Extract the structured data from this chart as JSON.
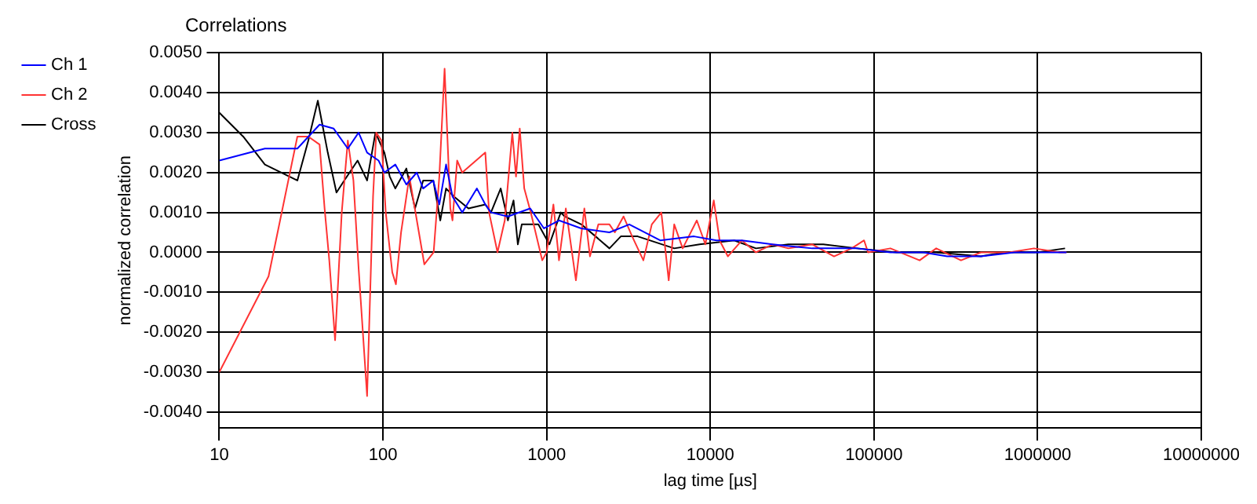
{
  "chart_data": {
    "type": "line",
    "title": "Correlations",
    "xlabel": "lag time [µs]",
    "ylabel": "normalized correlation",
    "log": "x",
    "xlim": [
      10,
      10000000
    ],
    "xticks": [
      10,
      100,
      1000,
      10000,
      100000,
      1000000,
      10000000
    ],
    "ylim": [
      -0.0044,
      0.005
    ],
    "yticks": [
      {
        "value": -0.004,
        "label": "-0.0040"
      },
      {
        "value": -0.003,
        "label": "-0.0030"
      },
      {
        "value": -0.002,
        "label": "-0.0020"
      },
      {
        "value": -0.001,
        "label": "-0.0010"
      },
      {
        "value": 0,
        "label": "0.0000"
      },
      {
        "value": 0.001,
        "label": "0.0010"
      },
      {
        "value": 0.002,
        "label": "0.0020"
      },
      {
        "value": 0.003,
        "label": "0.0030"
      },
      {
        "value": 0.004,
        "label": "0.0040"
      },
      {
        "value": 0.005,
        "label": "0.0050"
      }
    ],
    "grid": true,
    "legend": "top left",
    "marker": "none",
    "line_style": "solid",
    "series": [
      {
        "name": "Ch 1",
        "color": "#0000ff",
        "x": [
          10,
          19,
          30,
          41,
          50,
          61,
          71,
          80,
          94,
          102,
          119,
          139,
          161,
          176,
          203,
          221,
          243,
          266,
          305,
          375,
          422,
          457,
          580,
          794,
          963,
          1190,
          1630,
          2420,
          3200,
          4940,
          7950,
          10900,
          15600,
          24000,
          42000,
          79000,
          126000,
          200000,
          280000,
          450000,
          720000,
          1000000,
          1500000
        ],
        "values": [
          0.0023,
          0.0026,
          0.0026,
          0.0032,
          0.0031,
          0.0026,
          0.003,
          0.0025,
          0.0023,
          0.002,
          0.0022,
          0.0017,
          0.002,
          0.0016,
          0.0018,
          0.0012,
          0.0022,
          0.0014,
          0.001,
          0.0016,
          0.0012,
          0.001,
          0.0009,
          0.0011,
          0.0006,
          0.0008,
          0.0006,
          0.0005,
          0.0007,
          0.0003,
          0.0004,
          0.0003,
          0.0003,
          0.0002,
          0.0001,
          0.0001,
          0,
          0,
          -0.0001,
          -0.0001,
          0,
          0,
          0
        ]
      },
      {
        "name": "Ch 2",
        "color": "#ff3333",
        "x": [
          10,
          20,
          30,
          35,
          41,
          44,
          47,
          51,
          56,
          61,
          66,
          71,
          80,
          87,
          91,
          98,
          104,
          114,
          120,
          129,
          145,
          179,
          204,
          221,
          238,
          258,
          266,
          284,
          305,
          422,
          445,
          501,
          555,
          617,
          650,
          685,
          730,
          800,
          940,
          1000,
          1100,
          1190,
          1310,
          1510,
          1700,
          1840,
          2070,
          2420,
          2610,
          2950,
          3330,
          3900,
          4390,
          5020,
          5570,
          6020,
          6780,
          8270,
          9330,
          10500,
          11400,
          12800,
          15600,
          19000,
          24000,
          30000,
          42000,
          57000,
          73000,
          87000,
          92000,
          126000,
          190000,
          240000,
          340000,
          450000,
          670000,
          950000,
          1370000,
          1500000
        ],
        "values": [
          -0.003,
          -0.0006,
          0.0029,
          0.0029,
          0.0027,
          0.0011,
          -0.0002,
          -0.0022,
          0.001,
          0.0028,
          0.0018,
          -0.0004,
          -0.0036,
          0.0014,
          0.003,
          0.0028,
          0.001,
          -0.0005,
          -0.0008,
          0.0005,
          0.0019,
          -0.0003,
          0,
          0.0019,
          0.0046,
          0.0011,
          0.0008,
          0.0023,
          0.002,
          0.0025,
          0.001,
          0,
          0.0008,
          0.003,
          0.0019,
          0.0031,
          0.0016,
          0.001,
          -0.0002,
          0,
          0.0012,
          -0.0002,
          0.0011,
          -0.0007,
          0.0011,
          -0.0001,
          0.0007,
          0.0007,
          0.0005,
          0.0009,
          0.0004,
          -0.0002,
          0.0007,
          0.001,
          -0.0007,
          0.0007,
          0.0001,
          0.0008,
          0.0002,
          0.0013,
          0.0003,
          -0.0001,
          0.0003,
          0,
          0.0002,
          0.0001,
          0.0002,
          -0.0001,
          0.0001,
          0.0003,
          0,
          0.0001,
          -0.0002,
          0.0001,
          -0.0002,
          0,
          0,
          0.0001,
          0,
          0
        ]
      },
      {
        "name": "Cross",
        "color": "#000000",
        "x": [
          10,
          14,
          19,
          30,
          35,
          40,
          46,
          52,
          58,
          70,
          80,
          90,
          102,
          110,
          119,
          139,
          157,
          176,
          203,
          224,
          243,
          271,
          333,
          422,
          457,
          524,
          580,
          628,
          667,
          705,
          890,
          1040,
          1220,
          1290,
          1630,
          1990,
          2420,
          2840,
          3600,
          6020,
          8600,
          14000,
          19000,
          30000,
          49000,
          79000,
          137000,
          240000,
          450000,
          620000,
          1000000,
          1470000
        ],
        "values": [
          0.0035,
          0.0029,
          0.0022,
          0.0018,
          0.0028,
          0.0038,
          0.0025,
          0.0015,
          0.0018,
          0.0023,
          0.0018,
          0.003,
          0.0025,
          0.0019,
          0.0016,
          0.0021,
          0.0011,
          0.0018,
          0.0018,
          0.0008,
          0.0016,
          0.0014,
          0.0011,
          0.0012,
          0.001,
          0.0016,
          0.0008,
          0.0013,
          0.0002,
          0.0007,
          0.0007,
          0.0002,
          0.001,
          0.0009,
          0.0007,
          0.0004,
          0.0001,
          0.0004,
          0.0004,
          0.0001,
          0.0002,
          0.0003,
          0.0001,
          0.0002,
          0.0002,
          0.0001,
          0,
          0,
          -0.0001,
          0,
          0,
          0.0001
        ]
      }
    ]
  }
}
